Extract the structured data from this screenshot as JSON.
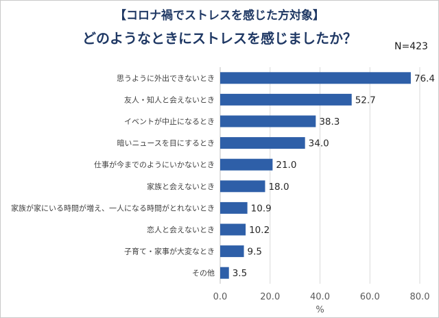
{
  "chart_data": {
    "type": "bar",
    "orientation": "horizontal",
    "title": "【コロナ禍でストレスを感じた方対象】",
    "subtitle": "どのようなときにストレスを感じましたか？",
    "note": "N=423",
    "xlabel": "%",
    "ylabel": "",
    "xlim": [
      0,
      80
    ],
    "xticks": [
      "0.0",
      "20.0",
      "40.0",
      "60.0",
      "80.0"
    ],
    "grid": true,
    "legend": "none",
    "bar_color": "#2e5fa8",
    "categories": [
      "思うように外出できないとき",
      "友人・知人と会えないとき",
      "イベントが中止になるとき",
      "暗いニュースを目にするとき",
      "仕事が今までのようにいかないとき",
      "家族と会えないとき",
      "家族が家にいる時間が増え、一人になる時間がとれないとき",
      "恋人と会えないとき",
      "子育て・家事が大変なとき",
      "その他"
    ],
    "values": [
      76.4,
      52.7,
      38.3,
      34.0,
      21.0,
      18.0,
      10.9,
      10.2,
      9.5,
      3.5
    ],
    "value_labels": [
      "76.4",
      "52.7",
      "38.3",
      "34.0",
      "21.0",
      "18.0",
      "10.9",
      "10.2",
      "9.5",
      "3.5"
    ]
  }
}
